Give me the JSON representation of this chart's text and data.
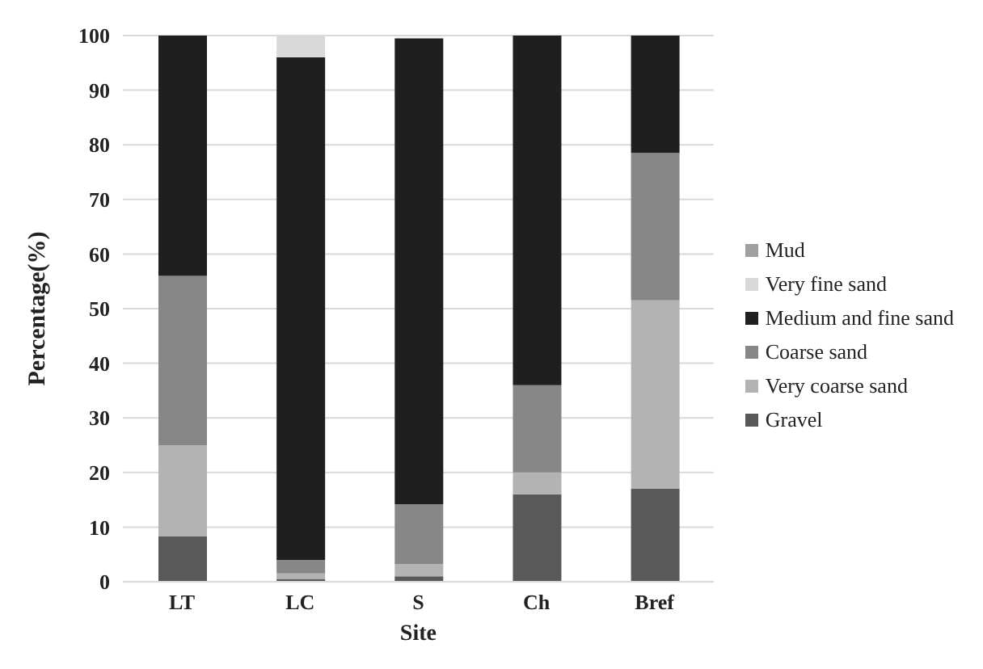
{
  "chart_data": {
    "type": "bar",
    "stacked": true,
    "xlabel": "Site",
    "ylabel": "Percentage(%)",
    "categories": [
      "LT",
      "LC",
      "S",
      "Ch",
      "Bref"
    ],
    "series": [
      {
        "name": "Gravel",
        "color": "#595959",
        "values": [
          8.3,
          0.5,
          1,
          16,
          17
        ]
      },
      {
        "name": "Very coarse sand",
        "color": "#b3b3b3",
        "values": [
          16.7,
          1,
          2.2,
          4,
          34.5
        ]
      },
      {
        "name": "Coarse sand",
        "color": "#878787",
        "values": [
          31,
          2.5,
          11,
          16,
          27
        ]
      },
      {
        "name": "Medium and fine sand",
        "color": "#1f1f1f",
        "values": [
          44,
          92,
          85.3,
          64,
          21.5
        ]
      },
      {
        "name": "Very fine sand",
        "color": "#d9d9d9",
        "values": [
          0,
          4,
          0,
          0,
          0
        ]
      },
      {
        "name": "Mud",
        "color": "#a0a0a0",
        "values": [
          0,
          0,
          0,
          0,
          0
        ]
      }
    ],
    "ylim": [
      0,
      100
    ],
    "yticks": [
      0,
      10,
      20,
      30,
      40,
      50,
      60,
      70,
      80,
      90,
      100
    ],
    "grid": "y",
    "legend": "right"
  }
}
